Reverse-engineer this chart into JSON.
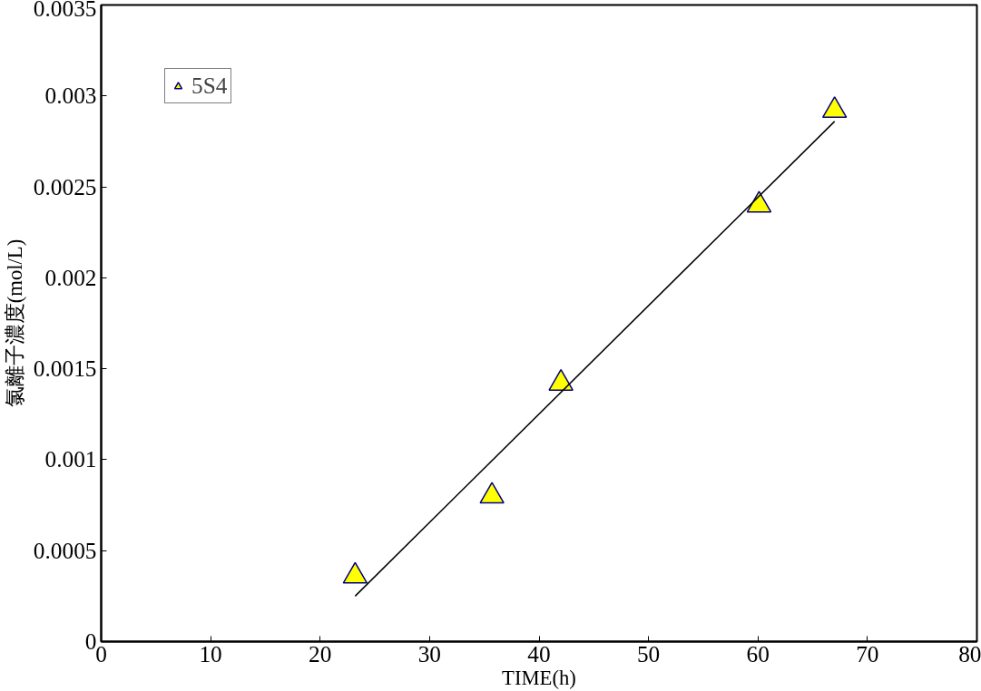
{
  "chart_data": {
    "type": "scatter",
    "xlabel": "TIME(h)",
    "ylabel": "氯離子濃度(mol/L)",
    "xlim": [
      0,
      80
    ],
    "xticks": [
      0,
      10,
      20,
      30,
      40,
      50,
      60,
      70,
      80
    ],
    "ylim": [
      0,
      0.0035
    ],
    "yticks": [
      0,
      {
        "value": 0.0005,
        "label": "0.0005"
      },
      {
        "value": 0.001,
        "label": "0.001"
      },
      {
        "value": 0.0015,
        "label": "0.0015"
      },
      {
        "value": 0.002,
        "label": "0.002"
      },
      {
        "value": 0.0025,
        "label": "0.0025"
      },
      {
        "value": 0.003,
        "label": "0.003"
      },
      {
        "value": 0.0035,
        "label": "0.0035"
      }
    ],
    "grid": false,
    "legend": "top left",
    "series": [
      {
        "name": "5S4",
        "marker": "triangle",
        "color": "#ffff00",
        "x": [
          23.2,
          35.7,
          42.0,
          60.1,
          67.0
        ],
        "values": [
          0.00036,
          0.0008,
          0.00142,
          0.0024,
          0.00292
        ]
      },
      {
        "type": "line",
        "marker": "none",
        "color": "#000000",
        "x": [
          23.2,
          67.0
        ],
        "values": [
          0.00025,
          0.00286
        ]
      }
    ]
  }
}
